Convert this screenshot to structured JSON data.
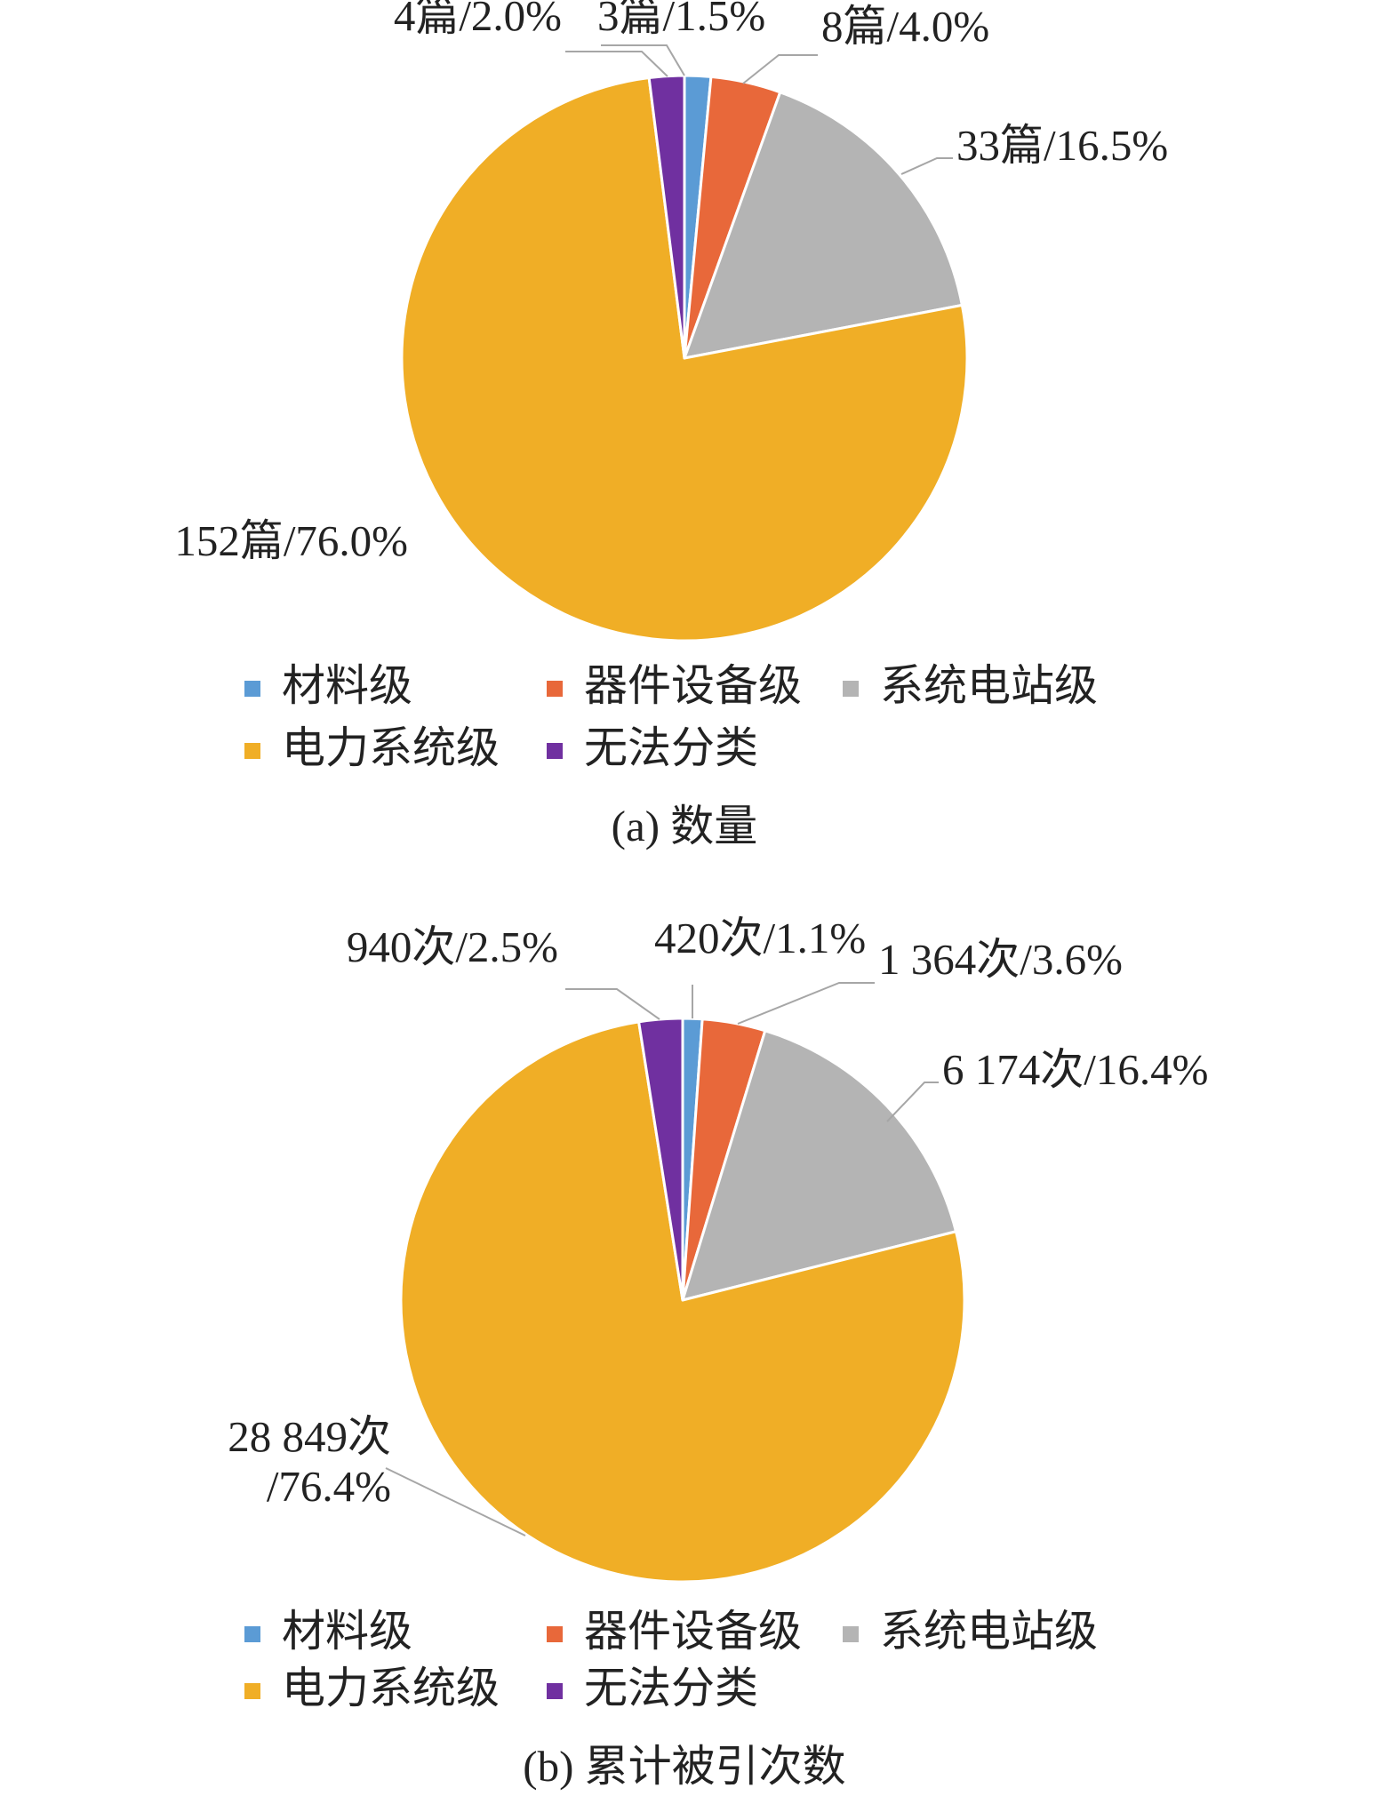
{
  "chart_data": [
    {
      "type": "pie",
      "title": "(a) 数量",
      "legend_position": "bottom",
      "categories": [
        "材料级",
        "器件设备级",
        "系统电站级",
        "电力系统级",
        "无法分类"
      ],
      "values": [
        3,
        8,
        33,
        152,
        4
      ],
      "percents": [
        1.5,
        4.0,
        16.5,
        76.0,
        2.0
      ],
      "data_labels": [
        "3篇/1.5%",
        "8篇/4.0%",
        "33篇/16.5%",
        "152篇/76.0%",
        "4篇/2.0%"
      ],
      "colors": [
        "#5B9BD5",
        "#E8683A",
        "#B4B4B4",
        "#F0AE26",
        "#7030A0"
      ]
    },
    {
      "type": "pie",
      "title": "(b) 累计被引次数",
      "legend_position": "bottom",
      "categories": [
        "材料级",
        "器件设备级",
        "系统电站级",
        "电力系统级",
        "无法分类"
      ],
      "values": [
        420,
        1364,
        6174,
        28849,
        940
      ],
      "percents": [
        1.1,
        3.6,
        16.4,
        76.4,
        2.5
      ],
      "data_labels": [
        "420次/1.1%",
        "1 364次/3.6%",
        "6 174次/16.4%",
        [
          "28 849次",
          "/76.4%"
        ],
        "940次/2.5%"
      ],
      "colors": [
        "#5B9BD5",
        "#E8683A",
        "#B4B4B4",
        "#F0AE26",
        "#7030A0"
      ]
    }
  ]
}
